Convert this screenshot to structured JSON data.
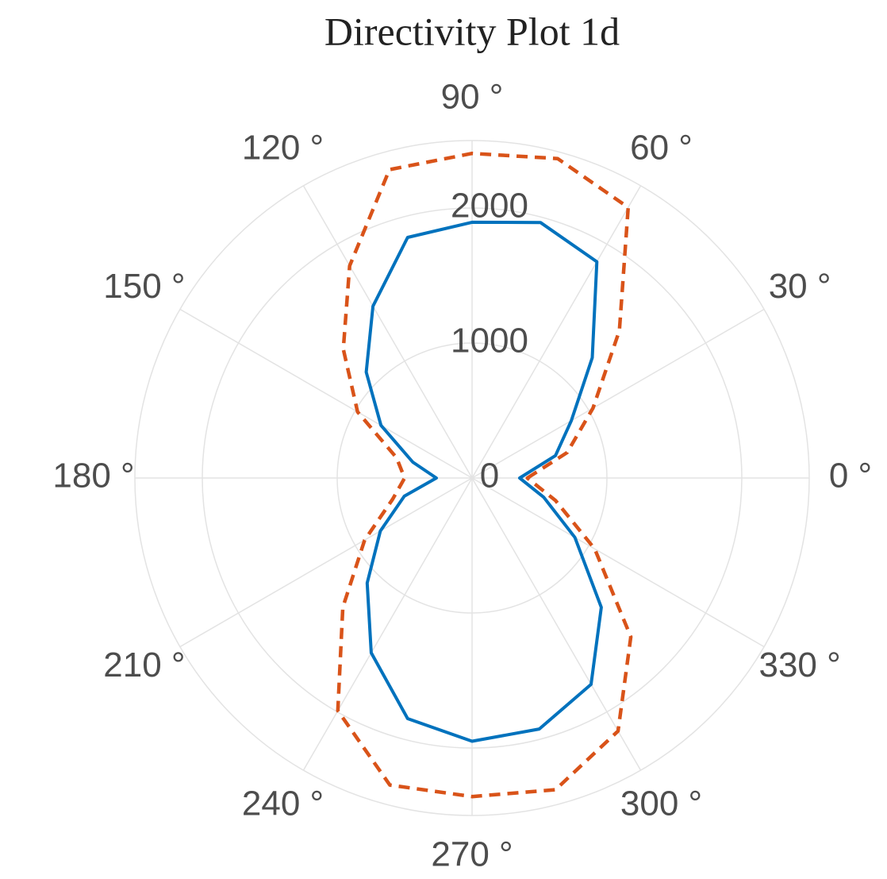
{
  "chart_data": {
    "type": "polar-line",
    "title": "Directivity Plot 1d",
    "theta": [
      0,
      15,
      30,
      45,
      60,
      75,
      90,
      105,
      120,
      135,
      150,
      165,
      180,
      195,
      210,
      225,
      240,
      255,
      270,
      285,
      300,
      315,
      330,
      345
    ],
    "series": [
      {
        "color": "#0072bd",
        "dash": false,
        "values": [
          353,
          640,
          850,
          1260,
          1850,
          1960,
          1895,
          1845,
          1470,
          1110,
          780,
          455,
          265,
          520,
          785,
          1100,
          1495,
          1845,
          1950,
          1925,
          1765,
          1355,
          880,
          550
        ]
      },
      {
        "color": "#d95319",
        "dash": true,
        "values": [
          410,
          730,
          1035,
          1545,
          2315,
          2450,
          2405,
          2365,
          1815,
          1350,
          980,
          580,
          500,
          610,
          920,
          1355,
          1990,
          2355,
          2360,
          2390,
          2165,
          1665,
          1050,
          640
        ]
      }
    ],
    "rlim": [
      0,
      2500
    ],
    "rticks": [
      0,
      1000,
      2000
    ],
    "thetaticks": [
      {
        "value": 0,
        "label": "0 °"
      },
      {
        "value": 30,
        "label": "30 °"
      },
      {
        "value": 60,
        "label": "60 °"
      },
      {
        "value": 90,
        "label": "90 °"
      },
      {
        "value": 120,
        "label": "120 °"
      },
      {
        "value": 150,
        "label": "150 °"
      },
      {
        "value": 180,
        "label": "180 °"
      },
      {
        "value": 210,
        "label": "210 °"
      },
      {
        "value": 240,
        "label": "240 °"
      },
      {
        "value": 270,
        "label": "270 °"
      },
      {
        "value": 300,
        "label": "300 °"
      },
      {
        "value": 330,
        "label": "330 °"
      }
    ],
    "grid": true
  }
}
